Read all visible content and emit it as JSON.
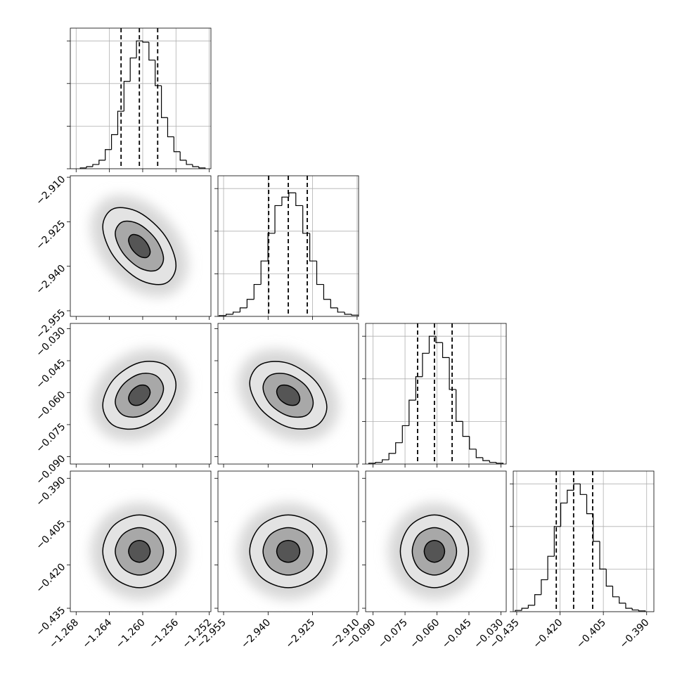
{
  "chart_data": {
    "type": "corner",
    "hist_ylim": [
      0,
      3.3
    ],
    "hist_yticks": [
      0,
      1,
      2,
      3
    ],
    "grid": true,
    "line_color": "#000000",
    "contour_fills": [
      "#e3e3e3",
      "#a8a8a8",
      "#555555"
    ],
    "parameters": [
      {
        "lim": [
          -1.2687,
          -1.2518
        ],
        "ticks": [
          {
            "value": -1.268,
            "label": "−1.268"
          },
          {
            "value": -1.264,
            "label": "−1.264"
          },
          {
            "value": -1.26,
            "label": "−1.260"
          },
          {
            "value": -1.256,
            "label": "−1.256"
          },
          {
            "value": -1.252,
            "label": "−1.252"
          }
        ],
        "bins": [
          -1.2675,
          -1.26675,
          -1.266,
          -1.26525,
          -1.2645,
          -1.26375,
          -1.263,
          -1.26225,
          -1.2615,
          -1.26075,
          -1.26,
          -1.25925,
          -1.2585,
          -1.25775,
          -1.257,
          -1.25625,
          -1.2555,
          -1.25475,
          -1.254,
          -1.25325,
          -1.2525
        ],
        "counts": [
          0.02,
          0.05,
          0.1,
          0.2,
          0.45,
          0.8,
          1.35,
          2.05,
          2.6,
          3.0,
          2.97,
          2.55,
          1.95,
          1.2,
          0.75,
          0.4,
          0.2,
          0.1,
          0.05,
          0.02
        ],
        "quantiles": [
          -1.2626,
          -1.2604,
          -1.2582
        ],
        "contours": []
      },
      {
        "lim": [
          -2.9569,
          -2.9095
        ],
        "ticks": [
          {
            "value": -2.955,
            "label": "−2.955"
          },
          {
            "value": -2.94,
            "label": "−2.940"
          },
          {
            "value": -2.925,
            "label": "−2.925"
          },
          {
            "value": -2.91,
            "label": "−2.910"
          }
        ],
        "bins": [
          -2.9565,
          -2.95415,
          -2.9518,
          -2.94945,
          -2.9471,
          -2.94475,
          -2.9424,
          -2.94005,
          -2.9377,
          -2.93535,
          -2.933,
          -2.93065,
          -2.9283,
          -2.92595,
          -2.9236,
          -2.92125,
          -2.9189,
          -2.91655,
          -2.9142,
          -2.91185,
          -2.9095
        ],
        "counts": [
          0.02,
          0.05,
          0.1,
          0.2,
          0.4,
          0.75,
          1.3,
          1.95,
          2.6,
          2.8,
          2.9,
          2.6,
          1.95,
          1.3,
          0.75,
          0.4,
          0.2,
          0.1,
          0.05,
          0.03
        ],
        "quantiles": [
          -2.9398,
          -2.9332,
          -2.9268
        ],
        "contours": [
          [
            [
              [
                -1.256,
                -2.9397
              ],
              [
                -1.2573,
                -2.9298
              ],
              [
                -1.2604,
                -2.9219
              ],
              [
                -1.2635,
                -2.9206
              ],
              [
                -1.2648,
                -2.9267
              ],
              [
                -1.2635,
                -2.9366
              ],
              [
                -1.2604,
                -2.9445
              ],
              [
                -1.2573,
                -2.9458
              ]
            ],
            [
              [
                -1.2575,
                -2.9374
              ],
              [
                -1.2584,
                -2.931
              ],
              [
                -1.2604,
                -2.9259
              ],
              [
                -1.2624,
                -2.925
              ],
              [
                -1.2633,
                -2.929
              ],
              [
                -1.2624,
                -2.9354
              ],
              [
                -1.2604,
                -2.9405
              ],
              [
                -1.2584,
                -2.9414
              ]
            ],
            [
              [
                -1.2591,
                -2.9352
              ],
              [
                -1.2595,
                -2.9322
              ],
              [
                -1.2604,
                -2.9298
              ],
              [
                -1.2613,
                -2.9294
              ],
              [
                -1.2617,
                -2.9312
              ],
              [
                -1.2613,
                -2.9342
              ],
              [
                -1.2604,
                -2.9366
              ],
              [
                -1.2595,
                -2.937
              ]
            ]
          ]
        ]
      },
      {
        "lim": [
          -0.0935,
          -0.0275
        ],
        "ticks": [
          {
            "value": -0.09,
            "label": "−0.090"
          },
          {
            "value": -0.075,
            "label": "−0.075"
          },
          {
            "value": -0.06,
            "label": "−0.060"
          },
          {
            "value": -0.045,
            "label": "−0.045"
          },
          {
            "value": -0.03,
            "label": "−0.030"
          }
        ],
        "bins": [
          -0.092,
          -0.08885,
          -0.0857,
          -0.08255,
          -0.0794,
          -0.07625,
          -0.0731,
          -0.06995,
          -0.0668,
          -0.06365,
          -0.0605,
          -0.05735,
          -0.0542,
          -0.05105,
          -0.0479,
          -0.04475,
          -0.0416,
          -0.03845,
          -0.0353,
          -0.03215,
          -0.029
        ],
        "counts": [
          0.02,
          0.04,
          0.1,
          0.25,
          0.5,
          0.9,
          1.5,
          2.05,
          2.6,
          3.0,
          2.85,
          2.5,
          1.75,
          1.0,
          0.65,
          0.35,
          0.15,
          0.08,
          0.04,
          0.02
        ],
        "quantiles": [
          -0.0691,
          -0.0612,
          -0.0529
        ],
        "contours": [
          [
            [
              [
                -1.256,
                -0.0564
              ],
              [
                -1.2573,
                -0.047
              ],
              [
                -1.2604,
                -0.0459
              ],
              [
                -1.2635,
                -0.0538
              ],
              [
                -1.2648,
                -0.066
              ],
              [
                -1.2635,
                -0.0754
              ],
              [
                -1.2604,
                -0.0765
              ],
              [
                -1.2573,
                -0.0686
              ]
            ],
            [
              [
                -1.2575,
                -0.0581
              ],
              [
                -1.2584,
                -0.052
              ],
              [
                -1.2604,
                -0.0513
              ],
              [
                -1.2624,
                -0.0564
              ],
              [
                -1.2633,
                -0.0643
              ],
              [
                -1.2624,
                -0.0704
              ],
              [
                -1.2604,
                -0.0711
              ],
              [
                -1.2584,
                -0.066
              ]
            ],
            [
              [
                -1.2591,
                -0.0598
              ],
              [
                -1.2595,
                -0.0569
              ],
              [
                -1.2604,
                -0.0566
              ],
              [
                -1.2613,
                -0.059
              ],
              [
                -1.2617,
                -0.0626
              ],
              [
                -1.2613,
                -0.0655
              ],
              [
                -1.2604,
                -0.0658
              ],
              [
                -1.2595,
                -0.0634
              ]
            ]
          ],
          [
            [
              [
                -2.9202,
                -0.0668
              ],
              [
                -2.924,
                -0.0546
              ],
              [
                -2.9332,
                -0.0462
              ],
              [
                -2.9424,
                -0.0467
              ],
              [
                -2.9462,
                -0.0556
              ],
              [
                -2.9424,
                -0.0678
              ],
              [
                -2.9332,
                -0.0762
              ],
              [
                -2.924,
                -0.0757
              ]
            ],
            [
              [
                -2.9248,
                -0.0648
              ],
              [
                -2.9272,
                -0.0569
              ],
              [
                -2.9332,
                -0.0515
              ],
              [
                -2.9392,
                -0.0518
              ],
              [
                -2.9417,
                -0.0576
              ],
              [
                -2.9392,
                -0.0655
              ],
              [
                -2.9332,
                -0.0709
              ],
              [
                -2.9272,
                -0.0707
              ]
            ],
            [
              [
                -2.9293,
                -0.0629
              ],
              [
                -2.9304,
                -0.0592
              ],
              [
                -2.9332,
                -0.0567
              ],
              [
                -2.936,
                -0.0568
              ],
              [
                -2.9371,
                -0.0595
              ],
              [
                -2.936,
                -0.0632
              ],
              [
                -2.9332,
                -0.0657
              ],
              [
                -2.9304,
                -0.0656
              ]
            ]
          ]
        ]
      },
      {
        "lim": [
          -0.4362,
          -0.3875
        ],
        "ticks": [
          {
            "value": -0.435,
            "label": "−0.435"
          },
          {
            "value": -0.42,
            "label": "−0.420"
          },
          {
            "value": -0.405,
            "label": "−0.405"
          },
          {
            "value": -0.39,
            "label": "−0.390"
          }
        ],
        "bins": [
          -0.4355,
          -0.43325,
          -0.431,
          -0.42875,
          -0.4265,
          -0.42425,
          -0.422,
          -0.41975,
          -0.4175,
          -0.41525,
          -0.413,
          -0.41075,
          -0.4085,
          -0.40625,
          -0.404,
          -0.40175,
          -0.3995,
          -0.39725,
          -0.395,
          -0.39275,
          -0.3905
        ],
        "counts": [
          0.03,
          0.08,
          0.15,
          0.4,
          0.75,
          1.3,
          2.0,
          2.55,
          2.85,
          3.0,
          2.75,
          2.3,
          1.65,
          1.0,
          0.6,
          0.35,
          0.2,
          0.08,
          0.04,
          0.02
        ],
        "quantiles": [
          -0.4213,
          -0.4153,
          -0.4087
        ],
        "contours": [
          [
            [
              [
                -1.256,
                -0.4153
              ],
              [
                -1.2573,
                -0.4064
              ],
              [
                -1.2604,
                -0.4027
              ],
              [
                -1.2635,
                -0.4064
              ],
              [
                -1.2648,
                -0.4153
              ],
              [
                -1.2635,
                -0.4242
              ],
              [
                -1.2604,
                -0.4279
              ],
              [
                -1.2573,
                -0.4242
              ]
            ],
            [
              [
                -1.2575,
                -0.4153
              ],
              [
                -1.2584,
                -0.4095
              ],
              [
                -1.2604,
                -0.4071
              ],
              [
                -1.2624,
                -0.4095
              ],
              [
                -1.2633,
                -0.4153
              ],
              [
                -1.2624,
                -0.4211
              ],
              [
                -1.2604,
                -0.4235
              ],
              [
                -1.2584,
                -0.4211
              ]
            ],
            [
              [
                -1.2591,
                -0.4153
              ],
              [
                -1.2595,
                -0.4126
              ],
              [
                -1.2604,
                -0.4115
              ],
              [
                -1.2613,
                -0.4126
              ],
              [
                -1.2617,
                -0.4153
              ],
              [
                -1.2613,
                -0.418
              ],
              [
                -1.2604,
                -0.4191
              ],
              [
                -1.2595,
                -0.418
              ]
            ]
          ],
          [
            [
              [
                -2.9202,
                -0.4153
              ],
              [
                -2.924,
                -0.4064
              ],
              [
                -2.9332,
                -0.4027
              ],
              [
                -2.9424,
                -0.4064
              ],
              [
                -2.9462,
                -0.4153
              ],
              [
                -2.9424,
                -0.4242
              ],
              [
                -2.9332,
                -0.4279
              ],
              [
                -2.924,
                -0.4242
              ]
            ],
            [
              [
                -2.9248,
                -0.4153
              ],
              [
                -2.9272,
                -0.4095
              ],
              [
                -2.9332,
                -0.4071
              ],
              [
                -2.9392,
                -0.4095
              ],
              [
                -2.9417,
                -0.4153
              ],
              [
                -2.9392,
                -0.4211
              ],
              [
                -2.9332,
                -0.4235
              ],
              [
                -2.9272,
                -0.4211
              ]
            ],
            [
              [
                -2.9293,
                -0.4153
              ],
              [
                -2.9304,
                -0.4126
              ],
              [
                -2.9332,
                -0.4115
              ],
              [
                -2.936,
                -0.4126
              ],
              [
                -2.9371,
                -0.4153
              ],
              [
                -2.936,
                -0.418
              ],
              [
                -2.9332,
                -0.4191
              ],
              [
                -2.9304,
                -0.418
              ]
            ]
          ],
          [
            [
              [
                -0.0452,
                -0.4153
              ],
              [
                -0.0499,
                -0.4064
              ],
              [
                -0.0612,
                -0.4027
              ],
              [
                -0.0725,
                -0.4064
              ],
              [
                -0.0772,
                -0.4153
              ],
              [
                -0.0725,
                -0.4242
              ],
              [
                -0.0612,
                -0.4279
              ],
              [
                -0.0499,
                -0.4242
              ]
            ],
            [
              [
                -0.0508,
                -0.4153
              ],
              [
                -0.0539,
                -0.4095
              ],
              [
                -0.0612,
                -0.4071
              ],
              [
                -0.0686,
                -0.4095
              ],
              [
                -0.0716,
                -0.4153
              ],
              [
                -0.0686,
                -0.4211
              ],
              [
                -0.0612,
                -0.4235
              ],
              [
                -0.0539,
                -0.4211
              ]
            ],
            [
              [
                -0.0564,
                -0.4153
              ],
              [
                -0.0578,
                -0.4126
              ],
              [
                -0.0612,
                -0.4115
              ],
              [
                -0.0646,
                -0.4126
              ],
              [
                -0.066,
                -0.4153
              ],
              [
                -0.0646,
                -0.418
              ],
              [
                -0.0612,
                -0.4191
              ],
              [
                -0.0578,
                -0.418
              ]
            ]
          ]
        ]
      }
    ]
  }
}
